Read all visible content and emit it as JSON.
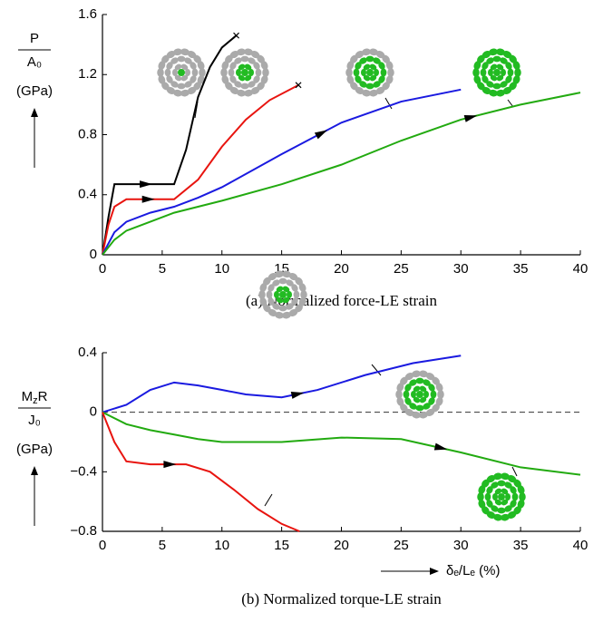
{
  "chart_data": [
    {
      "type": "line",
      "caption": "(a) Normalized force-LE strain",
      "ylabel": {
        "numerator": "P",
        "denominator": "A₀",
        "unit": "(GPa)"
      },
      "xlim": [
        0,
        40
      ],
      "xticks": [
        0,
        5,
        10,
        15,
        20,
        25,
        30,
        35,
        40
      ],
      "ylim": [
        0,
        1.6
      ],
      "yticks": [
        0,
        0.4,
        0.8,
        1.2,
        1.6
      ],
      "series": [
        {
          "color": "#000000",
          "x": [
            0,
            0.5,
            1,
            2,
            6,
            7,
            8,
            9,
            10,
            11.2
          ],
          "values": [
            0,
            0.25,
            0.47,
            0.47,
            0.47,
            0.7,
            1.05,
            1.25,
            1.38,
            1.46
          ]
        },
        {
          "color": "#e8140f",
          "x": [
            0,
            0.5,
            1,
            2,
            6,
            8,
            10,
            12,
            14,
            16.4
          ],
          "values": [
            0,
            0.2,
            0.32,
            0.37,
            0.37,
            0.5,
            0.72,
            0.9,
            1.03,
            1.13
          ]
        },
        {
          "color": "#1a1ae0",
          "x": [
            0,
            1,
            2,
            4,
            6,
            8,
            10,
            15,
            20,
            25,
            30
          ],
          "values": [
            0,
            0.15,
            0.22,
            0.28,
            0.32,
            0.38,
            0.45,
            0.67,
            0.88,
            1.02,
            1.1
          ]
        },
        {
          "color": "#22aa10",
          "x": [
            0,
            1,
            2,
            4,
            6,
            10,
            15,
            20,
            25,
            30,
            35,
            40
          ],
          "values": [
            0,
            0.1,
            0.16,
            0.22,
            0.28,
            0.36,
            0.47,
            0.6,
            0.76,
            0.9,
            1.0,
            1.08
          ]
        }
      ]
    },
    {
      "type": "line",
      "caption": "(b) Normalized torque-LE strain",
      "ylabel": {
        "numerator": [
          "M",
          "z",
          "R"
        ],
        "denominator": "J₀",
        "unit": "(GPa)"
      },
      "xlabel": "δₑ/Lₑ (%)",
      "xlim": [
        0,
        40
      ],
      "xticks": [
        0,
        5,
        10,
        15,
        20,
        25,
        30,
        35,
        40
      ],
      "ylim": [
        -0.8,
        0.4
      ],
      "yticks": [
        {
          "value": -0.8,
          "label": "−0.8"
        },
        {
          "value": -0.4,
          "label": "−0.4"
        },
        0,
        0.4
      ],
      "reference_line": 0,
      "series": [
        {
          "color": "#1a1ae0",
          "x": [
            0,
            2,
            4,
            6,
            8,
            10,
            12,
            15,
            18,
            22,
            26,
            30
          ],
          "values": [
            0,
            0.05,
            0.15,
            0.2,
            0.18,
            0.15,
            0.12,
            0.1,
            0.15,
            0.25,
            0.33,
            0.38
          ]
        },
        {
          "color": "#22aa10",
          "x": [
            0,
            2,
            4,
            6,
            8,
            10,
            15,
            20,
            25,
            30,
            35,
            40
          ],
          "values": [
            0,
            -0.08,
            -0.12,
            -0.15,
            -0.18,
            -0.2,
            -0.2,
            -0.17,
            -0.18,
            -0.27,
            -0.37,
            -0.42
          ]
        },
        {
          "color": "#e8140f",
          "x": [
            0,
            1,
            2,
            4,
            7,
            9,
            11,
            13,
            15,
            16.5
          ],
          "values": [
            0,
            -0.2,
            -0.33,
            -0.35,
            -0.35,
            -0.4,
            -0.52,
            -0.65,
            -0.75,
            -0.8
          ]
        }
      ]
    }
  ]
}
